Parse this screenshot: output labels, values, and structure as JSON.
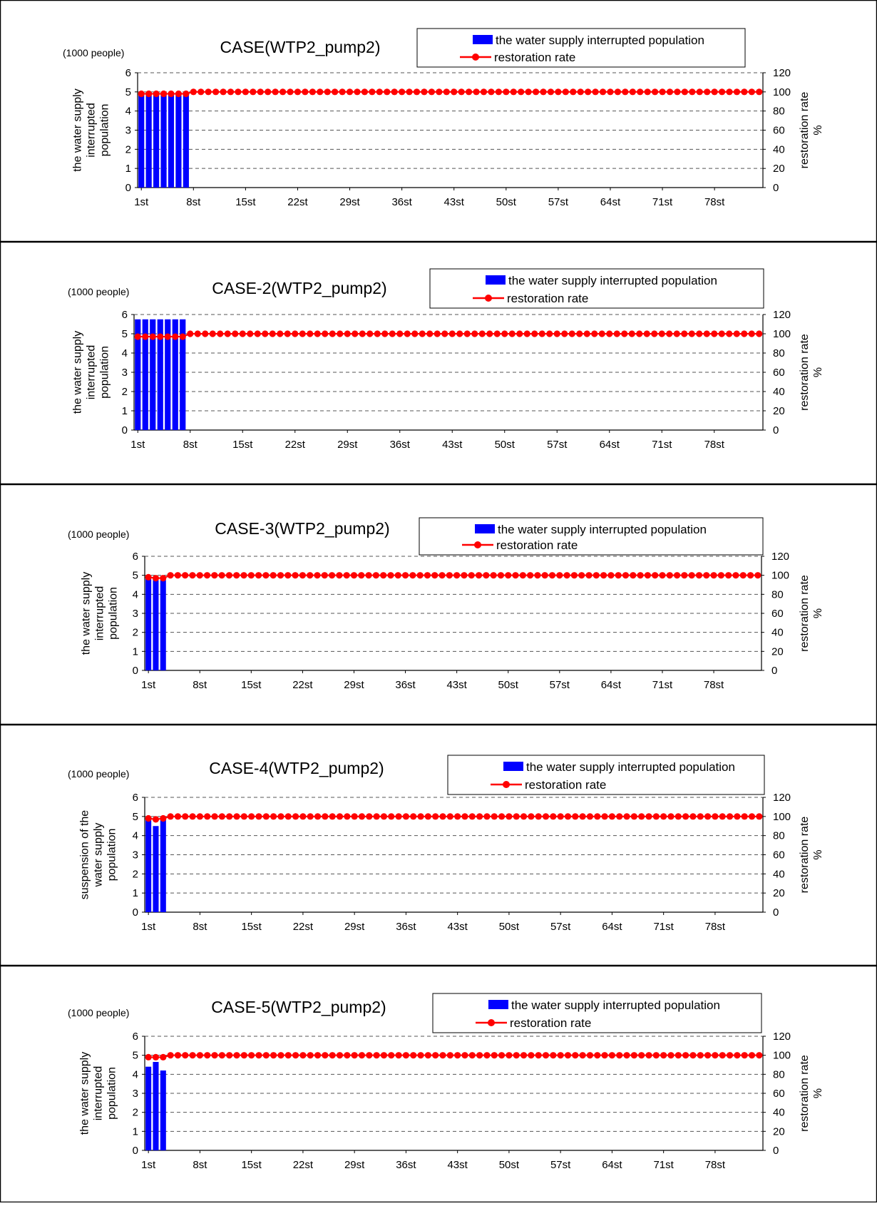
{
  "chart_data": [
    {
      "type": "bar",
      "title": "CASE(WTP2_pump2)",
      "unit_label": "(1000 people)",
      "ylabel_left": [
        "the water supply",
        "interrupted",
        "population"
      ],
      "ylabel_right": [
        "restoration rate",
        "%"
      ],
      "ylim_left": [
        0,
        6
      ],
      "ylim_right": [
        0,
        120
      ],
      "y_ticks_left": [
        "0",
        "1",
        "2",
        "3",
        "4",
        "5",
        "6"
      ],
      "y_ticks_right": [
        "0",
        "20",
        "40",
        "60",
        "80",
        "100",
        "120"
      ],
      "x_count": 84,
      "x_tick_labels": [
        "1st",
        "8st",
        "15st",
        "22st",
        "29st",
        "36st",
        "43st",
        "50st",
        "57st",
        "64st",
        "71st",
        "78st"
      ],
      "legend": [
        "the water supply interrupted population",
        "restoration rate"
      ],
      "colors": {
        "bar": "#0000ff",
        "line": "#ff0000"
      },
      "series": [
        {
          "name": "the water supply interrupted population",
          "axis": "left",
          "values": [
            4.9,
            4.9,
            4.9,
            4.9,
            4.9,
            4.9,
            4.9
          ]
        },
        {
          "name": "restoration rate",
          "axis": "right",
          "values": [
            98,
            98,
            98,
            98,
            98,
            98,
            98
          ],
          "rest_value": 100
        }
      ]
    },
    {
      "type": "bar",
      "title": "CASE-2(WTP2_pump2)",
      "unit_label": "(1000 people)",
      "ylabel_left": [
        "the water supply",
        "interrupted",
        "population"
      ],
      "ylabel_right": [
        "restoration rate",
        "%"
      ],
      "ylim_left": [
        0,
        6
      ],
      "ylim_right": [
        0,
        120
      ],
      "y_ticks_left": [
        "0",
        "1",
        "2",
        "3",
        "4",
        "5",
        "6"
      ],
      "y_ticks_right": [
        "0",
        "20",
        "40",
        "60",
        "80",
        "100",
        "120"
      ],
      "x_count": 84,
      "x_tick_labels": [
        "1st",
        "8st",
        "15st",
        "22st",
        "29st",
        "36st",
        "43st",
        "50st",
        "57st",
        "64st",
        "71st",
        "78st"
      ],
      "legend": [
        "the water supply interrupted population",
        "restoration rate"
      ],
      "colors": {
        "bar": "#0000ff",
        "line": "#ff0000"
      },
      "series": [
        {
          "name": "the water supply interrupted population",
          "axis": "left",
          "values": [
            5.75,
            5.75,
            5.75,
            5.75,
            5.75,
            5.75,
            5.75
          ]
        },
        {
          "name": "restoration rate",
          "axis": "right",
          "values": [
            97,
            97,
            97,
            97,
            97,
            97,
            97
          ],
          "rest_value": 100
        }
      ]
    },
    {
      "type": "bar",
      "title": "CASE-3(WTP2_pump2)",
      "unit_label": "(1000 people)",
      "ylabel_left": [
        "the water supply",
        "interrupted",
        "population"
      ],
      "ylabel_right": [
        "restoration rate",
        "%"
      ],
      "ylim_left": [
        0,
        6
      ],
      "ylim_right": [
        0,
        120
      ],
      "y_ticks_left": [
        "0",
        "1",
        "2",
        "3",
        "4",
        "5",
        "6"
      ],
      "y_ticks_right": [
        "0",
        "20",
        "40",
        "60",
        "80",
        "100",
        "120"
      ],
      "x_count": 84,
      "x_tick_labels": [
        "1st",
        "8st",
        "15st",
        "22st",
        "29st",
        "36st",
        "43st",
        "50st",
        "57st",
        "64st",
        "71st",
        "78st"
      ],
      "legend": [
        "the water supply interrupted population",
        "restoration rate"
      ],
      "colors": {
        "bar": "#0000ff",
        "line": "#ff0000"
      },
      "series": [
        {
          "name": "the water supply interrupted population",
          "axis": "left",
          "values": [
            4.85,
            4.75,
            4.75
          ]
        },
        {
          "name": "restoration rate",
          "axis": "right",
          "values": [
            98,
            97,
            97
          ],
          "rest_value": 100
        }
      ]
    },
    {
      "type": "bar",
      "title": "CASE-4(WTP2_pump2)",
      "unit_label": "(1000 people)",
      "ylabel_left": [
        "suspension of the",
        "water supply",
        "population"
      ],
      "ylabel_right": [
        "restoration rate",
        "%"
      ],
      "ylim_left": [
        0,
        6
      ],
      "ylim_right": [
        0,
        120
      ],
      "y_ticks_left": [
        "0",
        "1",
        "2",
        "3",
        "4",
        "5",
        "6"
      ],
      "y_ticks_right": [
        "0",
        "20",
        "40",
        "60",
        "80",
        "100",
        "120"
      ],
      "x_count": 84,
      "x_tick_labels": [
        "1st",
        "8st",
        "15st",
        "22st",
        "29st",
        "36st",
        "43st",
        "50st",
        "57st",
        "64st",
        "71st",
        "78st"
      ],
      "legend": [
        "the water supply interrupted population",
        "restoration rate"
      ],
      "colors": {
        "bar": "#0000ff",
        "line": "#ff0000"
      },
      "series": [
        {
          "name": "the water supply interrupted population",
          "axis": "left",
          "values": [
            4.85,
            4.5,
            5.0
          ]
        },
        {
          "name": "restoration rate",
          "axis": "right",
          "values": [
            98,
            97,
            98
          ],
          "rest_value": 100
        }
      ]
    },
    {
      "type": "bar",
      "title": "CASE-5(WTP2_pump2)",
      "unit_label": "(1000 people)",
      "ylabel_left": [
        "the water supply",
        "interrupted",
        "population"
      ],
      "ylabel_right": [
        "restoration rate",
        "%"
      ],
      "ylim_left": [
        0,
        6
      ],
      "ylim_right": [
        0,
        120
      ],
      "y_ticks_left": [
        "0",
        "1",
        "2",
        "3",
        "4",
        "5",
        "6"
      ],
      "y_ticks_right": [
        "0",
        "20",
        "40",
        "60",
        "80",
        "100",
        "120"
      ],
      "x_count": 84,
      "x_tick_labels": [
        "1st",
        "8st",
        "15st",
        "22st",
        "29st",
        "36st",
        "43st",
        "50st",
        "57st",
        "64st",
        "71st",
        "78st"
      ],
      "legend": [
        "the water supply interrupted population",
        "restoration rate"
      ],
      "colors": {
        "bar": "#0000ff",
        "line": "#ff0000"
      },
      "series": [
        {
          "name": "the water supply interrupted population",
          "axis": "left",
          "values": [
            4.4,
            4.65,
            4.2
          ]
        },
        {
          "name": "restoration rate",
          "axis": "right",
          "values": [
            98,
            98,
            98
          ],
          "rest_value": 100
        }
      ]
    }
  ]
}
